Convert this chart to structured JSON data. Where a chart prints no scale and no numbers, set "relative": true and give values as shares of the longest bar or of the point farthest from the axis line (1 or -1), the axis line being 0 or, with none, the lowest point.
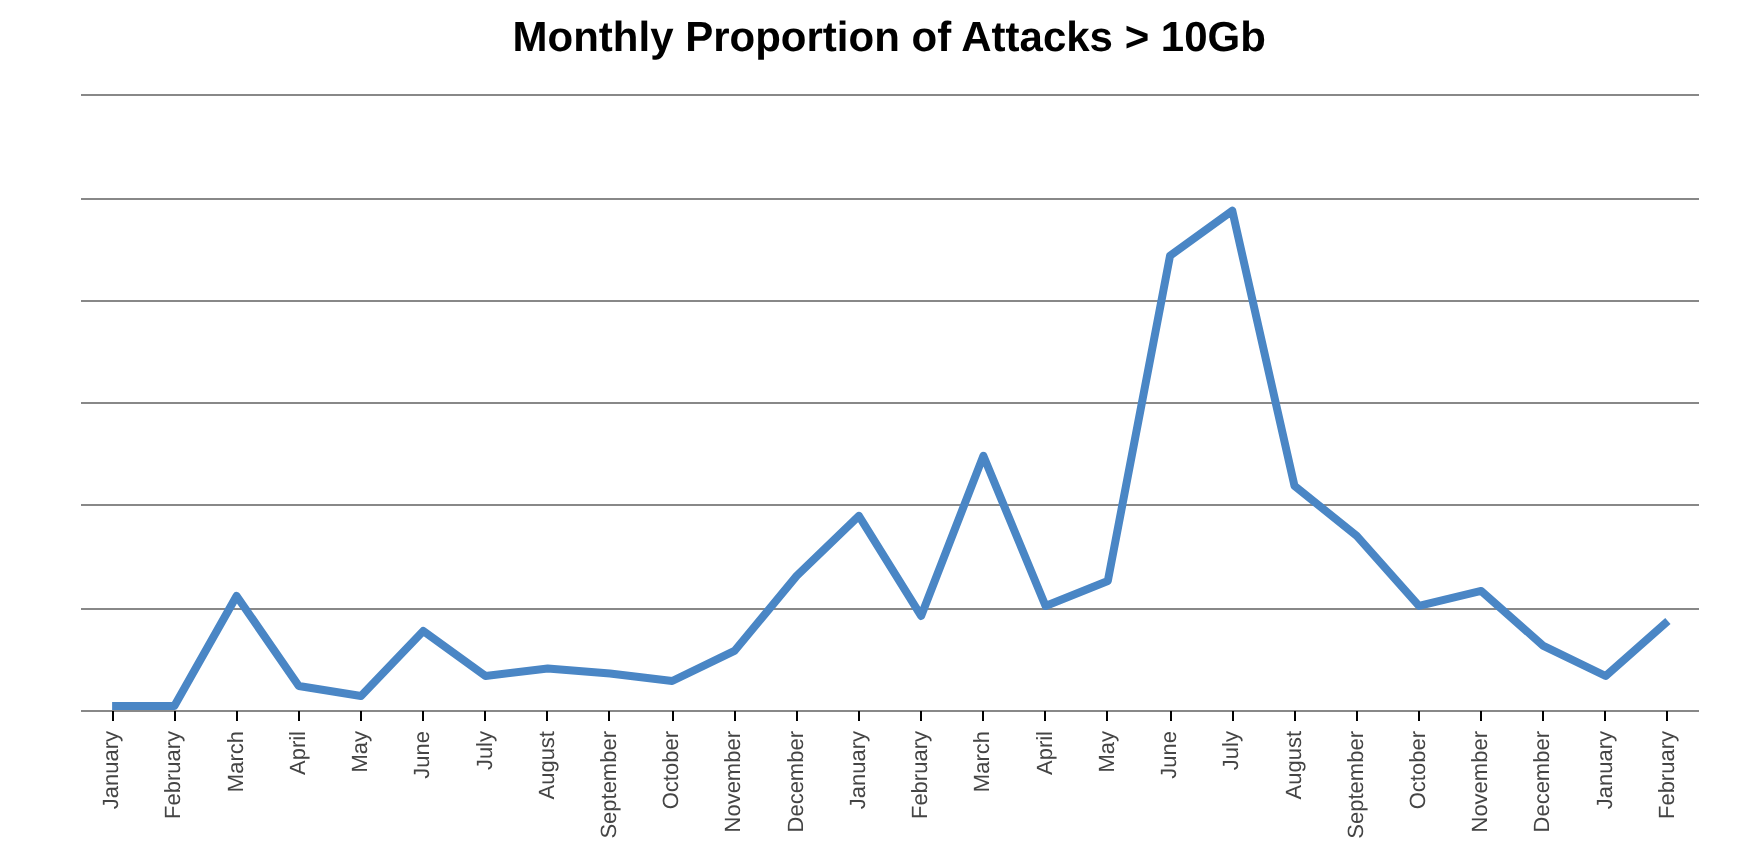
{
  "chart_data": {
    "type": "line",
    "title": "Monthly Proportion of Attacks > 10Gb",
    "relative": true,
    "grid": "y",
    "marker": "none",
    "line_style": "solid",
    "categories": [
      "January",
      "February",
      "March",
      "April",
      "May",
      "June",
      "July",
      "August",
      "September",
      "October",
      "November",
      "December",
      "January",
      "February",
      "March",
      "April",
      "May",
      "June",
      "July",
      "August",
      "September",
      "October",
      "November",
      "December",
      "January",
      "February"
    ],
    "series": [
      {
        "color": "#4a86c5",
        "values": [
          0.01,
          0.01,
          0.23,
          0.05,
          0.03,
          0.16,
          0.07,
          0.085,
          0.075,
          0.06,
          0.12,
          0.27,
          0.39,
          0.19,
          0.51,
          0.21,
          0.26,
          0.91,
          1,
          0.45,
          0.35,
          0.21,
          0.24,
          0.13,
          0.07,
          0.18
        ]
      }
    ]
  }
}
